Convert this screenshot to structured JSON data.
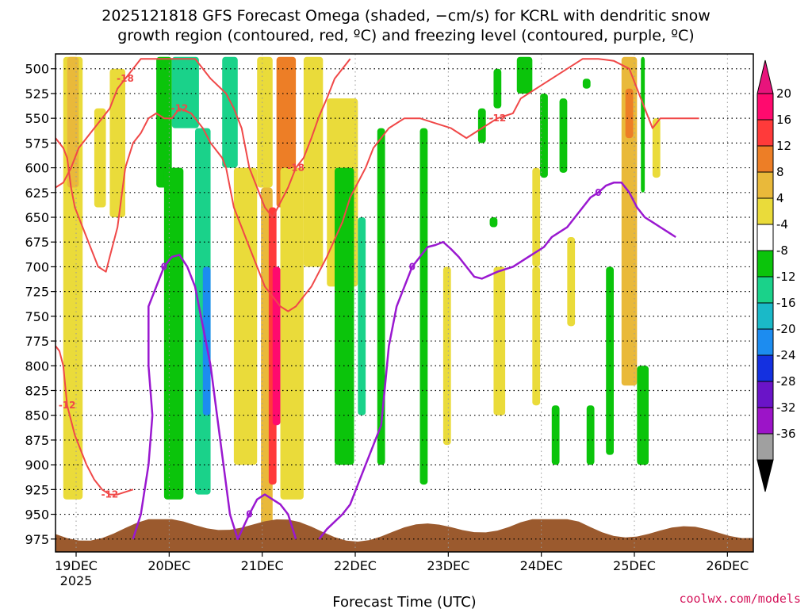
{
  "chart_data": {
    "type": "heatmap",
    "title": [
      "2025121818 GFS Forecast Omega (shaded, −cm/s) for KCRL with dendritic snow",
      "growth region (contoured, red, ºC) and freezing level (contoured, purple, ºC)"
    ],
    "xlabel": "Forecast Time (UTC)",
    "ylabel": "",
    "credit": "coolwx.com/models",
    "x_ticks": [
      "19DEC",
      "20DEC",
      "21DEC",
      "22DEC",
      "23DEC",
      "24DEC",
      "25DEC",
      "26DEC"
    ],
    "x_tick_year": "2025",
    "xlim_hours": [
      0,
      180
    ],
    "y_ticks": [
      500,
      525,
      550,
      575,
      600,
      625,
      650,
      675,
      700,
      725,
      750,
      775,
      800,
      825,
      850,
      875,
      900,
      925,
      950,
      975
    ],
    "ylim_hpa": [
      485,
      988
    ],
    "colorbar": {
      "labels": [
        "20",
        "16",
        "12",
        "8",
        "4",
        "-4",
        "-8",
        "-12",
        "-16",
        "-20",
        "-24",
        "-28",
        "-32",
        "-36"
      ],
      "colors": [
        "#ff0a6e",
        "#ff3a3a",
        "#ed7e26",
        "#e9b93a",
        "#eadb3a",
        "#ffffff",
        "#0bc40b",
        "#1ad28a",
        "#1ab9c8",
        "#1c8cf0",
        "#1430e0",
        "#6a14c8",
        "#9c14c8",
        "#a0a0a0"
      ],
      "top_color": "#e8147c",
      "bottom_color": "#000000"
    },
    "terrain_color": "#9b5a2e",
    "shaded_omega_regions": [
      {
        "t0": 2,
        "t1": 7,
        "p0": 488,
        "p1": 935,
        "value": 4
      },
      {
        "t0": 3,
        "t1": 6,
        "p0": 488,
        "p1": 620,
        "value": 8
      },
      {
        "t0": 10,
        "t1": 13,
        "p0": 540,
        "p1": 640,
        "value": 4
      },
      {
        "t0": 14,
        "t1": 18,
        "p0": 500,
        "p1": 650,
        "value": 4
      },
      {
        "t0": 26,
        "t1": 30,
        "p0": 488,
        "p1": 620,
        "value": -8
      },
      {
        "t0": 28,
        "t1": 33,
        "p0": 600,
        "p1": 935,
        "value": -8
      },
      {
        "t0": 30,
        "t1": 37,
        "p0": 488,
        "p1": 560,
        "value": -12
      },
      {
        "t0": 36,
        "t1": 40,
        "p0": 560,
        "p1": 930,
        "value": -12
      },
      {
        "t0": 38,
        "t1": 40,
        "p0": 700,
        "p1": 850,
        "value": -20
      },
      {
        "t0": 43,
        "t1": 47,
        "p0": 488,
        "p1": 600,
        "value": -12
      },
      {
        "t0": 46,
        "t1": 52,
        "p0": 600,
        "p1": 900,
        "value": 4
      },
      {
        "t0": 52,
        "t1": 56,
        "p0": 488,
        "p1": 620,
        "value": 4
      },
      {
        "t0": 53,
        "t1": 56,
        "p0": 620,
        "p1": 975,
        "value": 8
      },
      {
        "t0": 55,
        "t1": 57,
        "p0": 640,
        "p1": 920,
        "value": 16
      },
      {
        "t0": 56,
        "t1": 58,
        "p0": 700,
        "p1": 860,
        "value": 20
      },
      {
        "t0": 57,
        "t1": 62,
        "p0": 488,
        "p1": 640,
        "value": 12
      },
      {
        "t0": 58,
        "t1": 64,
        "p0": 600,
        "p1": 935,
        "value": 4
      },
      {
        "t0": 64,
        "t1": 69,
        "p0": 488,
        "p1": 700,
        "value": 4
      },
      {
        "t0": 70,
        "t1": 78,
        "p0": 530,
        "p1": 720,
        "value": 4
      },
      {
        "t0": 72,
        "t1": 77,
        "p0": 600,
        "p1": 900,
        "value": -8
      },
      {
        "t0": 78,
        "t1": 80,
        "p0": 650,
        "p1": 850,
        "value": -12
      },
      {
        "t0": 83,
        "t1": 85,
        "p0": 560,
        "p1": 900,
        "value": -8
      },
      {
        "t0": 94,
        "t1": 96,
        "p0": 560,
        "p1": 920,
        "value": -8
      },
      {
        "t0": 100,
        "t1": 102,
        "p0": 700,
        "p1": 880,
        "value": 4
      },
      {
        "t0": 109,
        "t1": 111,
        "p0": 540,
        "p1": 575,
        "value": -8
      },
      {
        "t0": 112,
        "t1": 114,
        "p0": 650,
        "p1": 660,
        "value": -8
      },
      {
        "t0": 113,
        "t1": 115,
        "p0": 500,
        "p1": 540,
        "value": -8
      },
      {
        "t0": 113,
        "t1": 116,
        "p0": 700,
        "p1": 850,
        "value": 4
      },
      {
        "t0": 119,
        "t1": 123,
        "p0": 488,
        "p1": 525,
        "value": -8
      },
      {
        "t0": 123,
        "t1": 125,
        "p0": 600,
        "p1": 700,
        "value": 4
      },
      {
        "t0": 123,
        "t1": 125,
        "p0": 700,
        "p1": 840,
        "value": 4
      },
      {
        "t0": 125,
        "t1": 127,
        "p0": 525,
        "p1": 610,
        "value": -8
      },
      {
        "t0": 128,
        "t1": 130,
        "p0": 840,
        "p1": 900,
        "value": -8
      },
      {
        "t0": 130,
        "t1": 132,
        "p0": 530,
        "p1": 605,
        "value": -8
      },
      {
        "t0": 132,
        "t1": 134,
        "p0": 670,
        "p1": 760,
        "value": 4
      },
      {
        "t0": 136,
        "t1": 138,
        "p0": 510,
        "p1": 520,
        "value": -8
      },
      {
        "t0": 137,
        "t1": 139,
        "p0": 840,
        "p1": 900,
        "value": -8
      },
      {
        "t0": 142,
        "t1": 144,
        "p0": 700,
        "p1": 890,
        "value": -8
      },
      {
        "t0": 146,
        "t1": 150,
        "p0": 488,
        "p1": 820,
        "value": 8
      },
      {
        "t0": 147,
        "t1": 149,
        "p0": 520,
        "p1": 570,
        "value": 12
      },
      {
        "t0": 150,
        "t1": 153,
        "p0": 800,
        "p1": 900,
        "value": -8
      },
      {
        "t0": 151,
        "t1": 152,
        "p0": 488,
        "p1": 625,
        "value": -8
      },
      {
        "t0": 154,
        "t1": 156,
        "p0": 550,
        "p1": 610,
        "value": 4
      }
    ],
    "dgz_contours": [
      {
        "label": "-12",
        "points": [
          [
            0,
            570
          ],
          [
            2,
            580
          ],
          [
            3,
            590
          ],
          [
            4,
            620
          ],
          [
            5,
            640
          ],
          [
            7,
            660
          ],
          [
            9,
            680
          ],
          [
            11,
            700
          ],
          [
            13,
            705
          ],
          [
            14,
            690
          ],
          [
            16,
            660
          ],
          [
            18,
            600
          ],
          [
            20,
            575
          ],
          [
            22,
            565
          ],
          [
            24,
            550
          ],
          [
            26,
            545
          ],
          [
            28,
            550
          ],
          [
            30,
            550
          ],
          [
            32,
            540
          ],
          [
            35,
            545
          ],
          [
            38,
            560
          ],
          [
            40,
            575
          ],
          [
            43,
            590
          ],
          [
            44,
            600
          ],
          [
            46,
            640
          ],
          [
            48,
            660
          ],
          [
            50,
            680
          ],
          [
            52,
            700
          ],
          [
            54,
            720
          ],
          [
            56,
            730
          ],
          [
            58,
            740
          ],
          [
            60,
            745
          ],
          [
            62,
            740
          ],
          [
            64,
            730
          ],
          [
            66,
            720
          ],
          [
            70,
            690
          ],
          [
            74,
            655
          ],
          [
            76,
            630
          ],
          [
            80,
            600
          ],
          [
            82,
            580
          ],
          [
            86,
            560
          ],
          [
            90,
            550
          ],
          [
            94,
            550
          ],
          [
            98,
            555
          ],
          [
            102,
            560
          ],
          [
            106,
            570
          ],
          [
            110,
            560
          ],
          [
            114,
            550
          ],
          [
            118,
            545
          ],
          [
            120,
            530
          ],
          [
            124,
            520
          ],
          [
            128,
            510
          ],
          [
            132,
            500
          ],
          [
            136,
            490
          ],
          [
            140,
            490
          ],
          [
            144,
            492
          ],
          [
            148,
            500
          ],
          [
            150,
            520
          ],
          [
            152,
            540
          ],
          [
            154,
            560
          ],
          [
            156,
            550
          ],
          [
            160,
            550
          ],
          [
            166,
            550
          ]
        ]
      },
      {
        "label": "-18",
        "points": [
          [
            0,
            620
          ],
          [
            2,
            615
          ],
          [
            4,
            600
          ],
          [
            6,
            580
          ],
          [
            8,
            570
          ],
          [
            10,
            560
          ],
          [
            12,
            550
          ],
          [
            14,
            540
          ],
          [
            16,
            520
          ],
          [
            18,
            510
          ],
          [
            20,
            500
          ],
          [
            22,
            490
          ],
          [
            36,
            490
          ],
          [
            40,
            510
          ],
          [
            44,
            525
          ],
          [
            46,
            540
          ],
          [
            48,
            560
          ],
          [
            50,
            600
          ],
          [
            52,
            620
          ],
          [
            54,
            640
          ],
          [
            56,
            650
          ],
          [
            58,
            635
          ],
          [
            60,
            620
          ],
          [
            62,
            600
          ],
          [
            64,
            590
          ],
          [
            66,
            570
          ],
          [
            68,
            548
          ],
          [
            70,
            530
          ],
          [
            72,
            510
          ],
          [
            74,
            500
          ],
          [
            76,
            490
          ]
        ]
      },
      {
        "label": "-12",
        "points": [
          [
            0,
            780
          ],
          [
            1,
            785
          ],
          [
            2,
            800
          ],
          [
            3,
            840
          ],
          [
            5,
            870
          ],
          [
            8,
            900
          ],
          [
            10,
            915
          ],
          [
            12,
            925
          ],
          [
            14,
            930
          ],
          [
            16,
            930
          ],
          [
            20,
            925
          ]
        ]
      }
    ],
    "freezing_contours": [
      {
        "label": "0",
        "points": [
          [
            20,
            975
          ],
          [
            22,
            950
          ],
          [
            24,
            900
          ],
          [
            25,
            850
          ],
          [
            24,
            800
          ],
          [
            24,
            740
          ],
          [
            26,
            720
          ],
          [
            28,
            700
          ],
          [
            30,
            690
          ],
          [
            32,
            688
          ],
          [
            34,
            700
          ],
          [
            36,
            720
          ],
          [
            38,
            760
          ],
          [
            40,
            800
          ],
          [
            42,
            860
          ],
          [
            44,
            920
          ],
          [
            45,
            950
          ],
          [
            47,
            975
          ],
          [
            50,
            950
          ],
          [
            52,
            935
          ],
          [
            54,
            930
          ],
          [
            56,
            935
          ],
          [
            58,
            940
          ],
          [
            60,
            950
          ],
          [
            62,
            975
          ]
        ]
      },
      {
        "label": "0",
        "points": [
          [
            68,
            975
          ],
          [
            70,
            965
          ],
          [
            74,
            950
          ],
          [
            76,
            940
          ],
          [
            78,
            920
          ],
          [
            80,
            900
          ],
          [
            82,
            880
          ],
          [
            84,
            860
          ],
          [
            85,
            820
          ],
          [
            86,
            780
          ],
          [
            88,
            740
          ],
          [
            90,
            720
          ],
          [
            92,
            700
          ],
          [
            94,
            690
          ],
          [
            96,
            680
          ],
          [
            98,
            678
          ],
          [
            100,
            675
          ],
          [
            102,
            682
          ],
          [
            104,
            690
          ],
          [
            106,
            700
          ],
          [
            108,
            710
          ],
          [
            110,
            712
          ],
          [
            114,
            705
          ],
          [
            118,
            700
          ],
          [
            122,
            690
          ],
          [
            126,
            680
          ],
          [
            128,
            670
          ],
          [
            130,
            665
          ],
          [
            132,
            660
          ],
          [
            134,
            650
          ],
          [
            136,
            640
          ],
          [
            138,
            630
          ],
          [
            140,
            625
          ],
          [
            142,
            618
          ],
          [
            144,
            615
          ],
          [
            146,
            615
          ],
          [
            148,
            625
          ],
          [
            150,
            640
          ],
          [
            152,
            650
          ],
          [
            154,
            655
          ],
          [
            156,
            660
          ],
          [
            158,
            665
          ],
          [
            160,
            670
          ]
        ]
      }
    ]
  }
}
